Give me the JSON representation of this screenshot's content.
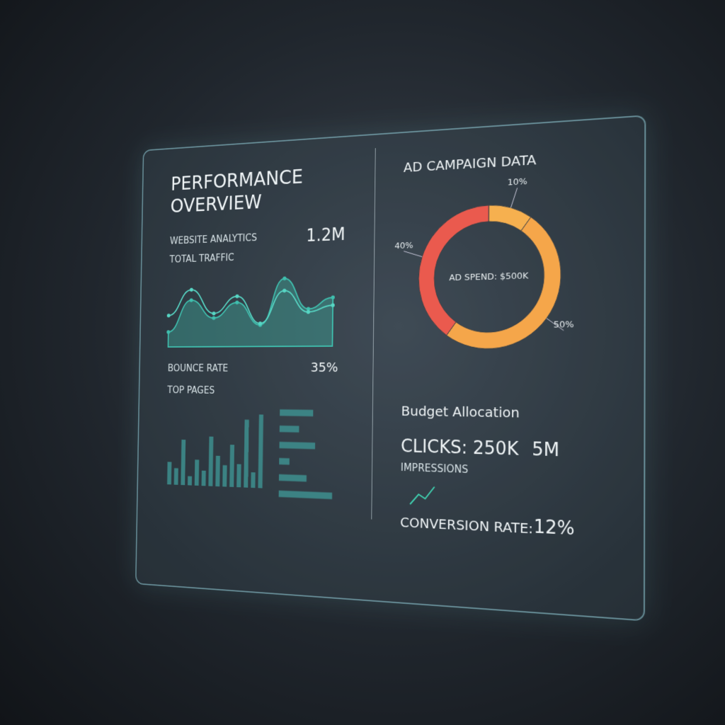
{
  "left": {
    "title": "PERFORMANCE OVERVIEW",
    "section": "WEBSITE ANALYTICS",
    "traffic_label": "TOTAL TRAFFIC",
    "traffic_value": "1.2M",
    "bounce_label": "BOUNCE RATE",
    "bounce_value": "35%",
    "top_pages_label": "TOP PAGES"
  },
  "traffic_chart": {
    "type": "line",
    "ylim": [
      0,
      100
    ],
    "series": [
      {
        "color": "#3fbfae",
        "values": [
          20,
          62,
          38,
          58,
          28,
          88,
          48,
          62
        ]
      },
      {
        "color": "#57d6c4",
        "values": [
          42,
          76,
          44,
          66,
          30,
          72,
          44,
          52
        ]
      }
    ]
  },
  "pages_chart": {
    "type": "bar",
    "ylim": [
      0,
      100
    ],
    "color": "#3d8f8e",
    "values": [
      30,
      22,
      60,
      12,
      34,
      20,
      65,
      40,
      28,
      55,
      30,
      88,
      20,
      95
    ]
  },
  "pages_hbar": {
    "type": "hbar",
    "xlim": [
      0,
      100
    ],
    "color": "#3d8f8e",
    "values": [
      58,
      34,
      62,
      18,
      48,
      92
    ]
  },
  "right": {
    "title": "AD CAMPAIGN DATA",
    "budget_label": "Budget Allocation",
    "clicks": "CLICKS: 250K",
    "impressions_value": "5M",
    "impressions_label": "IMPRESSIONS",
    "conversion_label": "CONVERSION RATE:",
    "conversion_value": "12%"
  },
  "budget_chart": {
    "type": "pie",
    "center_label": "AD SPEND: $500K",
    "values": [
      10,
      50,
      40
    ],
    "value_labels": [
      "10%",
      "50%",
      "40%"
    ],
    "colors": [
      "#f6b04f",
      "#f5a64a",
      "#ea5a4e"
    ]
  }
}
